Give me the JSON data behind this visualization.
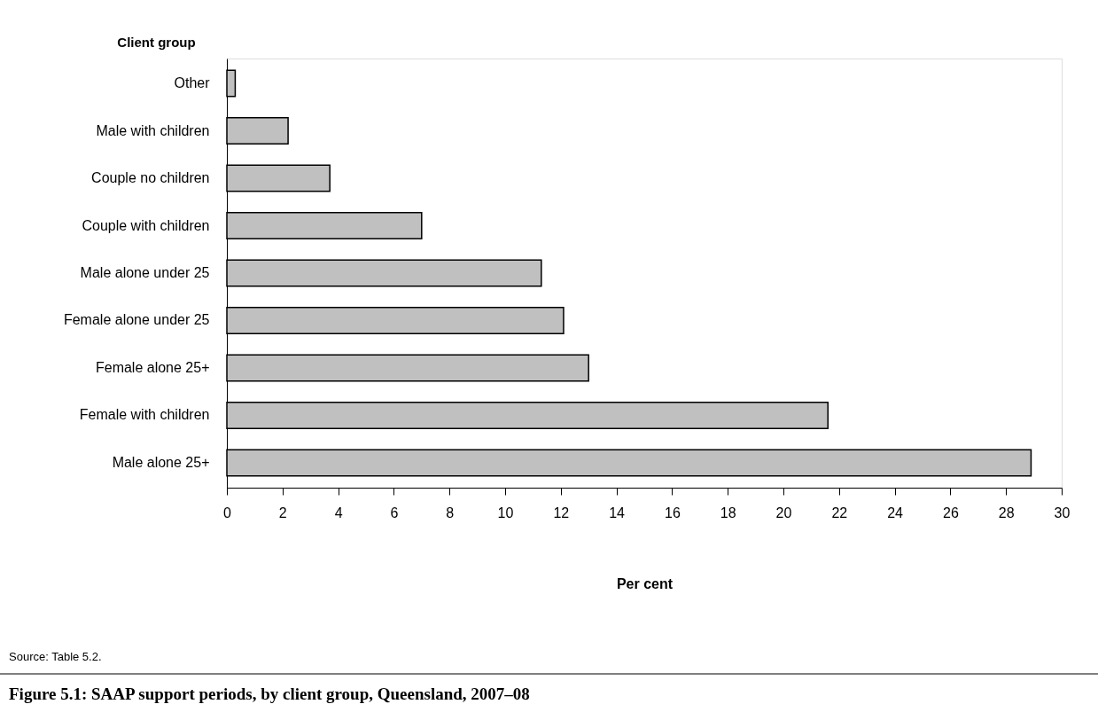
{
  "chart_data": {
    "type": "bar",
    "orientation": "horizontal",
    "title": "Figure 5.1: SAAP support periods, by client group, Queensland, 2007–08",
    "ylabel": "Client group",
    "xlabel": "Per cent",
    "categories": [
      "Other",
      "Male with children",
      "Couple no children",
      "Couple with children",
      "Male alone under 25",
      "Female alone under 25",
      "Female alone 25+",
      "Female with children",
      "Male alone 25+"
    ],
    "values": [
      0.3,
      2.2,
      3.7,
      7.0,
      11.3,
      12.1,
      13.0,
      21.6,
      28.9
    ],
    "color": "#c0c0c0",
    "xlim": [
      0,
      30
    ],
    "xticks": [
      0,
      2,
      4,
      6,
      8,
      10,
      12,
      14,
      16,
      18,
      20,
      22,
      24,
      26,
      28,
      30
    ],
    "grid": false,
    "annotations": [
      "Source: Table 5.2."
    ]
  }
}
